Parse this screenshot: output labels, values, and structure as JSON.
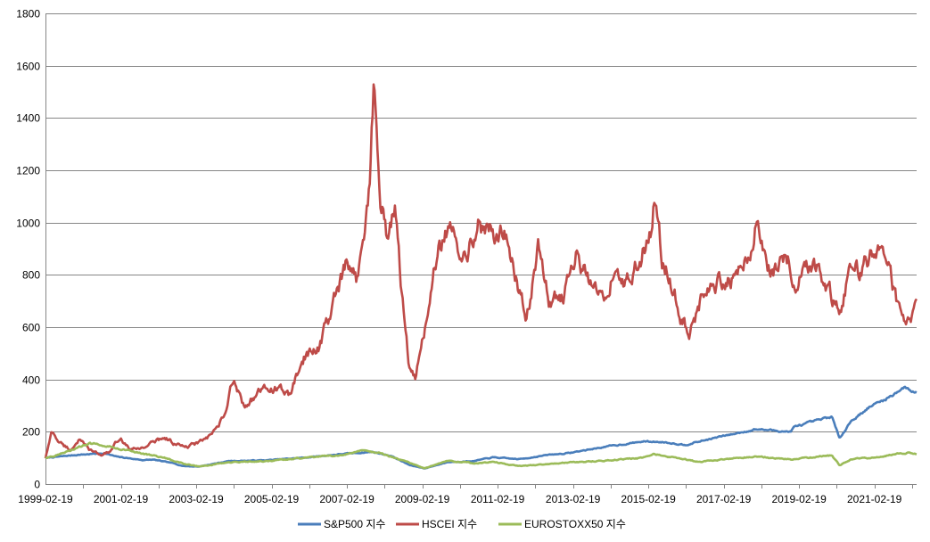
{
  "chart_data": {
    "type": "line",
    "title": "",
    "xlabel": "",
    "ylabel": "",
    "ylim": [
      0,
      1800
    ],
    "y_ticks": [
      0,
      200,
      400,
      600,
      800,
      1000,
      1200,
      1400,
      1600,
      1800
    ],
    "x_range": [
      1999.13,
      2022.25
    ],
    "x_tick_labels": [
      "1999-02-19",
      "2001-02-19",
      "2003-02-19",
      "2005-02-19",
      "2007-02-19",
      "2009-02-19",
      "2011-02-19",
      "2013-02-19",
      "2015-02-19",
      "2017-02-19",
      "2019-02-19",
      "2021-02-19"
    ],
    "x_tick_values": [
      1999.13,
      2001.13,
      2003.13,
      2005.13,
      2007.13,
      2009.13,
      2011.13,
      2013.13,
      2015.13,
      2017.13,
      2019.13,
      2021.13
    ],
    "grid": true,
    "legend_position": "bottom",
    "series": [
      {
        "name": "S&P500 지수",
        "color": "#4a7ebb",
        "x": [
          1999.13,
          1999.5,
          2000.0,
          2000.7,
          2001.0,
          2001.7,
          2002.0,
          2002.5,
          2002.8,
          2003.2,
          2004.0,
          2005.0,
          2006.0,
          2007.0,
          2007.8,
          2008.3,
          2008.8,
          2009.2,
          2009.8,
          2010.5,
          2011.0,
          2011.7,
          2012.5,
          2013.0,
          2014.0,
          2015.0,
          2015.6,
          2016.1,
          2017.0,
          2018.0,
          2018.9,
          2019.0,
          2019.5,
          2020.0,
          2020.2,
          2020.5,
          2021.0,
          2021.5,
          2021.9,
          2022.25
        ],
        "values": [
          100,
          105,
          112,
          118,
          105,
          92,
          93,
          80,
          69,
          67,
          88,
          91,
          101,
          115,
          123,
          108,
          72,
          60,
          84,
          88,
          102,
          95,
          112,
          118,
          143,
          163,
          160,
          150,
          180,
          210,
          200,
          218,
          238,
          258,
          175,
          240,
          295,
          330,
          370,
          350
        ]
      },
      {
        "name": "HSCEI 지수",
        "color": "#be4b48",
        "x": [
          1999.13,
          1999.3,
          1999.5,
          1999.8,
          2000.0,
          2000.3,
          2000.6,
          2000.9,
          2001.1,
          2001.4,
          2001.7,
          2002.0,
          2002.3,
          2002.6,
          2002.9,
          2003.2,
          2003.5,
          2003.9,
          2004.1,
          2004.4,
          2004.8,
          2005.2,
          2005.6,
          2006.0,
          2006.4,
          2006.8,
          2007.1,
          2007.4,
          2007.6,
          2007.75,
          2007.85,
          2008.0,
          2008.2,
          2008.4,
          2008.6,
          2008.8,
          2008.95,
          2009.2,
          2009.5,
          2009.8,
          2010.0,
          2010.3,
          2010.6,
          2010.9,
          2011.3,
          2011.6,
          2011.9,
          2012.2,
          2012.5,
          2012.9,
          2013.2,
          2013.5,
          2013.9,
          2014.2,
          2014.5,
          2014.9,
          2015.2,
          2015.3,
          2015.5,
          2015.7,
          2016.0,
          2016.2,
          2016.6,
          2017.0,
          2017.4,
          2017.8,
          2018.0,
          2018.1,
          2018.4,
          2018.8,
          2019.1,
          2019.4,
          2019.7,
          2020.0,
          2020.2,
          2020.5,
          2020.8,
          2021.0,
          2021.2,
          2021.5,
          2021.8,
          2022.0,
          2022.25
        ],
        "values": [
          100,
          200,
          160,
          130,
          170,
          130,
          110,
          130,
          180,
          130,
          140,
          160,
          180,
          150,
          140,
          160,
          180,
          260,
          400,
          300,
          350,
          370,
          340,
          480,
          530,
          700,
          820,
          780,
          1000,
          1200,
          1550,
          1100,
          950,
          1050,
          700,
          430,
          400,
          600,
          850,
          980,
          920,
          900,
          1000,
          950,
          970,
          800,
          640,
          900,
          700,
          720,
          880,
          800,
          690,
          820,
          760,
          850,
          980,
          1120,
          850,
          800,
          650,
          580,
          720,
          780,
          800,
          880,
          1000,
          900,
          820,
          870,
          780,
          850,
          830,
          720,
          640,
          850,
          800,
          880,
          920,
          820,
          650,
          620,
          660
        ]
      },
      {
        "name": "EUROSTOXX50 지수",
        "color": "#9bbb59",
        "x": [
          1999.13,
          1999.5,
          2000.0,
          2000.3,
          2000.7,
          2001.1,
          2001.7,
          2002.2,
          2002.6,
          2003.0,
          2003.2,
          2004.0,
          2005.0,
          2006.0,
          2007.0,
          2007.5,
          2008.0,
          2008.5,
          2009.0,
          2009.2,
          2009.8,
          2010.5,
          2011.0,
          2011.7,
          2012.5,
          2013.0,
          2014.0,
          2015.0,
          2015.3,
          2016.0,
          2016.5,
          2017.0,
          2017.5,
          2018.0,
          2019.0,
          2019.5,
          2020.0,
          2020.2,
          2020.5,
          2021.0,
          2021.5,
          2022.0,
          2022.25
        ],
        "values": [
          100,
          112,
          140,
          155,
          150,
          135,
          115,
          105,
          85,
          72,
          68,
          82,
          88,
          100,
          112,
          128,
          118,
          95,
          70,
          62,
          90,
          80,
          85,
          68,
          75,
          82,
          90,
          100,
          115,
          95,
          85,
          92,
          100,
          105,
          95,
          102,
          110,
          72,
          95,
          100,
          110,
          120,
          118
        ]
      }
    ]
  }
}
